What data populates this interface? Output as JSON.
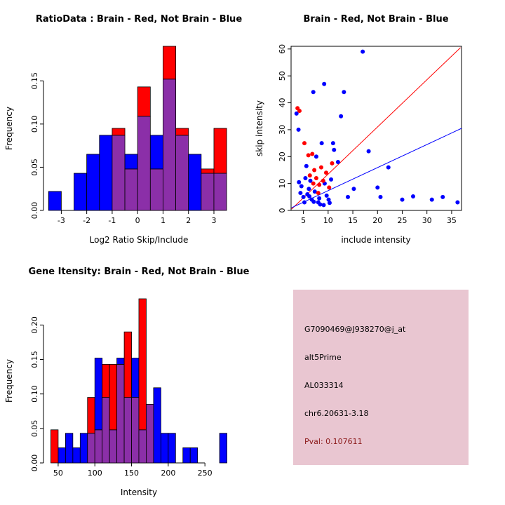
{
  "window": {
    "background": "#FFFFFF"
  },
  "colors": {
    "brain_red": "#FF0000",
    "not_brain_blue": "#0000FF",
    "overlap_purple": "#8B2FA8",
    "info_box_background": "#E9C6D1",
    "pval_text": "#8B1A1A",
    "axis": "#000000"
  },
  "chart_data": [
    {
      "type": "bar",
      "subtype": "overlaid_histogram",
      "title": "RatioData : Brain - Red, Not Brain - Blue",
      "xlabel": "Log2 Ratio Skip/Include",
      "ylabel": "Frequency",
      "xlim": [
        -3.7,
        3.8
      ],
      "ylim": [
        0,
        0.19
      ],
      "xticks": [
        -3,
        -2,
        -1,
        0,
        1,
        2,
        3
      ],
      "yticks": [
        0,
        0.05,
        0.1,
        0.15
      ],
      "ytick_labels": [
        "0.00",
        "0.05",
        "0.10",
        "0.15"
      ],
      "grid": false,
      "bin_start": -3.5,
      "bin_width": 0.5,
      "series": [
        {
          "name": "Not Brain",
          "color": "#0000FF",
          "values": [
            0.022,
            0,
            0.043,
            0.065,
            0.087,
            0.087,
            0.065,
            0.109,
            0.087,
            0.152,
            0.087,
            0.065,
            0.043,
            0.043
          ]
        },
        {
          "name": "Brain",
          "color": "#FF0000",
          "values": [
            0,
            0,
            0,
            0,
            0,
            0.095,
            0.048,
            0.143,
            0.048,
            0.19,
            0.095,
            0,
            0.048,
            0.095
          ]
        }
      ]
    },
    {
      "type": "scatter",
      "title": "Brain - Red, Not Brain - Blue",
      "xlabel": "include intensity",
      "ylabel": "skip intensity",
      "xlim": [
        2.5,
        37
      ],
      "ylim": [
        0,
        61
      ],
      "xticks": [
        5,
        10,
        15,
        20,
        25,
        30,
        35
      ],
      "yticks": [
        0,
        10,
        20,
        30,
        40,
        50,
        60
      ],
      "grid": false,
      "series": [
        {
          "name": "Not Brain",
          "color": "#0000FF",
          "points": [
            [
              3.6,
              36
            ],
            [
              4,
              30
            ],
            [
              4.1,
              10.5
            ],
            [
              4.6,
              9
            ],
            [
              5,
              5
            ],
            [
              5.2,
              3
            ],
            [
              5.6,
              16.5
            ],
            [
              6.1,
              8
            ],
            [
              6.2,
              5.2
            ],
            [
              6.7,
              4
            ],
            [
              7,
              44
            ],
            [
              7.1,
              3.2
            ],
            [
              7.6,
              20
            ],
            [
              8,
              3
            ],
            [
              8.2,
              4.5
            ],
            [
              8.7,
              25
            ],
            [
              9.2,
              47
            ],
            [
              9.3,
              10
            ],
            [
              9.7,
              5.5
            ],
            [
              10.1,
              4
            ],
            [
              10.3,
              2.8
            ],
            [
              11,
              25
            ],
            [
              11.2,
              22.5
            ],
            [
              12,
              18
            ],
            [
              12.6,
              35
            ],
            [
              13.2,
              44
            ],
            [
              14,
              5
            ],
            [
              15.2,
              8
            ],
            [
              17,
              59
            ],
            [
              18.2,
              22
            ],
            [
              20,
              8.5
            ],
            [
              20.6,
              5
            ],
            [
              22.2,
              16
            ],
            [
              25,
              4
            ],
            [
              27.2,
              5.2
            ],
            [
              31,
              4
            ],
            [
              33.2,
              5
            ],
            [
              36.2,
              3
            ],
            [
              5.4,
              12
            ],
            [
              6.4,
              11
            ],
            [
              7.3,
              7
            ],
            [
              8.4,
              2.2
            ],
            [
              9.1,
              2
            ],
            [
              10.6,
              11.5
            ],
            [
              4.4,
              6.5
            ],
            [
              5.8,
              6
            ]
          ]
        },
        {
          "name": "Brain",
          "color": "#FF0000",
          "points": [
            [
              3.8,
              38
            ],
            [
              4.2,
              37
            ],
            [
              5.2,
              25
            ],
            [
              6,
              20.5
            ],
            [
              6.3,
              13
            ],
            [
              6.8,
              21
            ],
            [
              7.2,
              15
            ],
            [
              7.6,
              12
            ],
            [
              8.2,
              9.5
            ],
            [
              8.6,
              16
            ],
            [
              9,
              11
            ],
            [
              9.6,
              14
            ],
            [
              10.2,
              8.5
            ],
            [
              10.8,
              17.5
            ],
            [
              7,
              10
            ],
            [
              8,
              6.5
            ]
          ]
        }
      ],
      "lines": [
        {
          "name": "brain_fit",
          "color": "#FF0000",
          "from": [
            2.6,
            0.5
          ],
          "to": [
            36.8,
            60.5
          ]
        },
        {
          "name": "not_brain_fit",
          "color": "#0000FF",
          "from": [
            2.6,
            1.0
          ],
          "to": [
            37.0,
            30.5
          ]
        }
      ]
    },
    {
      "type": "bar",
      "subtype": "overlaid_histogram",
      "title": "Gene Itensity: Brain - Red, Not Brain - Blue",
      "xlabel": "Intensity",
      "ylabel": "Frequency",
      "xlim": [
        30,
        290
      ],
      "ylim": [
        0,
        0.238
      ],
      "xticks": [
        50,
        100,
        150,
        200,
        250
      ],
      "yticks": [
        0,
        0.05,
        0.1,
        0.15,
        0.2
      ],
      "ytick_labels": [
        "0.00",
        "0.05",
        "0.10",
        "0.15",
        "0.20"
      ],
      "grid": false,
      "bin_start": 40,
      "bin_width": 10,
      "series": [
        {
          "name": "Not Brain",
          "color": "#0000FF",
          "values": [
            0,
            0.022,
            0.043,
            0.022,
            0.043,
            0.043,
            0.152,
            0.095,
            0.048,
            0.152,
            0.095,
            0.152,
            0.048,
            0.085,
            0.109,
            0.043,
            0.043,
            0,
            0.022,
            0.022,
            0,
            0,
            0,
            0.043
          ]
        },
        {
          "name": "Brain",
          "color": "#FF0000",
          "values": [
            0.048,
            0,
            0,
            0,
            0,
            0.095,
            0.048,
            0.143,
            0.143,
            0.143,
            0.19,
            0.095,
            0.238,
            0.085,
            0,
            0,
            0,
            0,
            0,
            0,
            0,
            0,
            0,
            0
          ]
        }
      ]
    }
  ],
  "info_box": {
    "lines": [
      {
        "text": "G7090469@J938270@j_at",
        "color": "#000000"
      },
      {
        "text": "alt5Prime",
        "color": "#000000"
      },
      {
        "text": "AL033314",
        "color": "#000000"
      },
      {
        "text": "chr6.20631-3.18",
        "color": "#000000"
      },
      {
        "text": "Pval: 0.107611",
        "color": "#8B1A1A"
      }
    ]
  }
}
